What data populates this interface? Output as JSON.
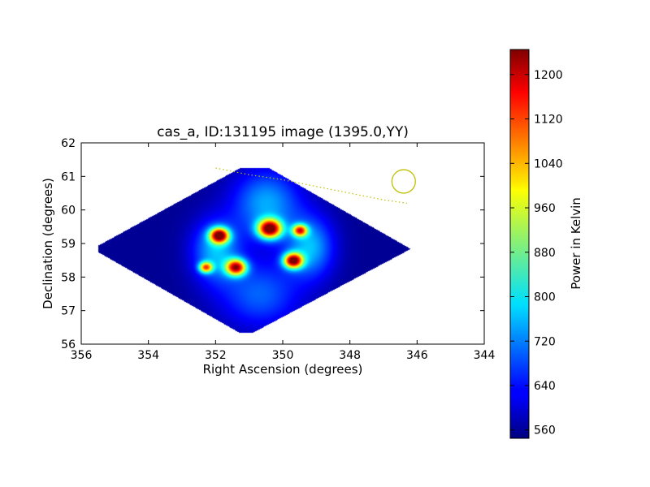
{
  "chart_data": {
    "type": "heatmap",
    "title": "cas_a, ID:131195 image (1395.0,YY)",
    "xlabel": "Right Ascension (degrees)",
    "ylabel": "Declination (degrees)",
    "xlim": [
      356,
      344
    ],
    "ylim": [
      56,
      62
    ],
    "x_ticks": [
      356,
      354,
      352,
      350,
      348,
      346,
      344
    ],
    "y_ticks": [
      56,
      57,
      58,
      59,
      60,
      61,
      62
    ],
    "colorbar": {
      "label": "Power in Kelvin",
      "range": [
        545,
        1245
      ],
      "ticks": [
        560,
        640,
        720,
        800,
        880,
        960,
        1040,
        1120,
        1200
      ],
      "colormap": "jet"
    },
    "footprint_polygon": [
      [
        355.5,
        58.95
      ],
      [
        351.3,
        61.25
      ],
      [
        350.4,
        61.25
      ],
      [
        346.2,
        58.85
      ],
      [
        350.9,
        56.35
      ],
      [
        351.3,
        56.35
      ],
      [
        355.5,
        58.75
      ]
    ],
    "background_level": 560,
    "hotspots": [
      {
        "ra": 350.4,
        "dec": 59.45,
        "peak": 1220,
        "width": 0.35
      },
      {
        "ra": 351.9,
        "dec": 59.25,
        "peak": 1190,
        "width": 0.28
      },
      {
        "ra": 349.7,
        "dec": 58.5,
        "peak": 1190,
        "width": 0.28
      },
      {
        "ra": 351.4,
        "dec": 58.3,
        "peak": 1130,
        "width": 0.3
      },
      {
        "ra": 349.5,
        "dec": 59.4,
        "peak": 1040,
        "width": 0.22
      },
      {
        "ra": 352.3,
        "dec": 58.3,
        "peak": 1000,
        "width": 0.2
      }
    ],
    "halos": [
      {
        "ra": 350.5,
        "dec": 60.2,
        "peak": 750,
        "rx": 1.0,
        "ry": 1.0
      },
      {
        "ra": 350.7,
        "dec": 57.5,
        "peak": 700,
        "rx": 1.2,
        "ry": 1.0
      },
      {
        "ra": 352.0,
        "dec": 58.8,
        "peak": 760,
        "rx": 0.7,
        "ry": 0.9
      },
      {
        "ra": 349.2,
        "dec": 58.9,
        "peak": 760,
        "rx": 0.7,
        "ry": 0.9
      }
    ],
    "beam_circle": {
      "ra": 346.4,
      "dec": 60.85,
      "radius_deg": 0.35,
      "color": "#bfbf00"
    },
    "horizon_line": {
      "points": [
        [
          352.0,
          61.25
        ],
        [
          351.0,
          61.05
        ],
        [
          350.0,
          60.9
        ],
        [
          349.0,
          60.7
        ],
        [
          348.0,
          60.5
        ],
        [
          347.0,
          60.3
        ],
        [
          346.3,
          60.2
        ]
      ],
      "color": "#bfbf00"
    }
  }
}
